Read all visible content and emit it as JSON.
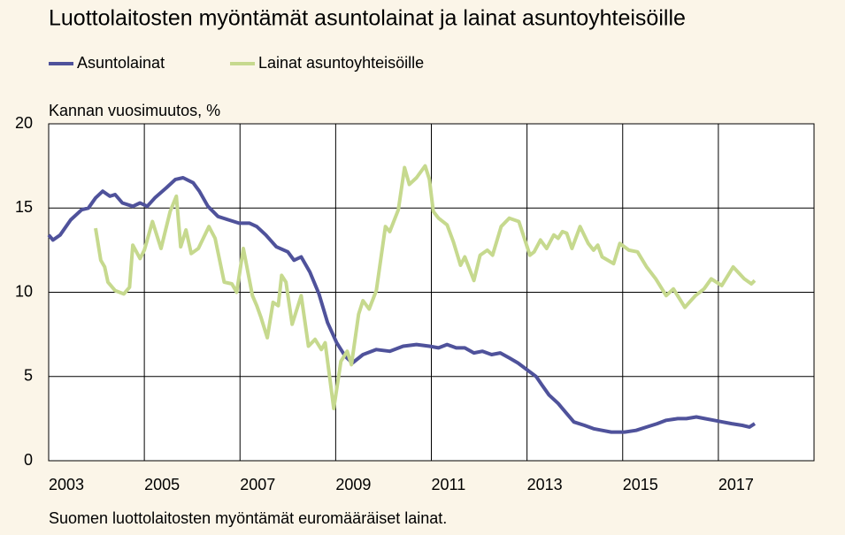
{
  "chart_data": {
    "type": "line",
    "title": "Luottolaitosten myöntämät asuntolainat ja lainat asuntoyhteisöille",
    "y_label": "Kannan vuosimuutos, %",
    "note": "Suomen luottolaitosten myöntämät euromääräiset lainat.",
    "xlim": [
      2003,
      2019
    ],
    "xticks": [
      2003,
      2005,
      2007,
      2009,
      2011,
      2013,
      2015,
      2017
    ],
    "ylim": [
      0,
      20
    ],
    "yticks": [
      0,
      5,
      10,
      15,
      20
    ],
    "grid": true,
    "series": [
      {
        "name": "Asuntolainat",
        "color": "#4f529b",
        "x": [
          2003.0,
          2003.09,
          2003.24,
          2003.46,
          2003.69,
          2003.83,
          2003.98,
          2004.13,
          2004.28,
          2004.39,
          2004.54,
          2004.76,
          2004.91,
          2005.06,
          2005.22,
          2005.46,
          2005.65,
          2005.81,
          2006.02,
          2006.15,
          2006.33,
          2006.54,
          2006.76,
          2006.98,
          2007.2,
          2007.35,
          2007.54,
          2007.76,
          2008.0,
          2008.13,
          2008.28,
          2008.46,
          2008.65,
          2008.83,
          2009.02,
          2009.2,
          2009.35,
          2009.57,
          2009.85,
          2010.13,
          2010.41,
          2010.69,
          2010.96,
          2011.15,
          2011.33,
          2011.52,
          2011.7,
          2011.89,
          2012.07,
          2012.26,
          2012.44,
          2012.63,
          2012.81,
          2013.0,
          2013.19,
          2013.31,
          2013.46,
          2013.65,
          2013.8,
          2013.98,
          2014.2,
          2014.39,
          2014.57,
          2014.76,
          2015.04,
          2015.28,
          2015.5,
          2015.72,
          2015.91,
          2016.15,
          2016.33,
          2016.54,
          2016.72,
          2016.91,
          2017.09,
          2017.28,
          2017.5,
          2017.65,
          2017.76
        ],
        "values": [
          13.4,
          13.1,
          13.4,
          14.3,
          14.9,
          15.0,
          15.6,
          16.0,
          15.7,
          15.8,
          15.3,
          15.1,
          15.3,
          15.1,
          15.6,
          16.2,
          16.7,
          16.8,
          16.5,
          16.0,
          15.1,
          14.5,
          14.3,
          14.1,
          14.1,
          13.9,
          13.4,
          12.7,
          12.4,
          11.9,
          12.1,
          11.2,
          9.9,
          8.2,
          7.0,
          6.2,
          5.8,
          6.3,
          6.6,
          6.5,
          6.8,
          6.9,
          6.8,
          6.7,
          6.9,
          6.7,
          6.7,
          6.4,
          6.5,
          6.3,
          6.4,
          6.1,
          5.8,
          5.4,
          5.0,
          4.5,
          3.9,
          3.4,
          2.9,
          2.3,
          2.1,
          1.9,
          1.8,
          1.7,
          1.7,
          1.8,
          2.0,
          2.2,
          2.4,
          2.5,
          2.5,
          2.6,
          2.5,
          2.4,
          2.3,
          2.2,
          2.1,
          2.0,
          2.2
        ]
      },
      {
        "name": "Lainat asuntoyhteisöille",
        "color": "#c6d98e",
        "x": [
          2003.98,
          2004.09,
          2004.17,
          2004.24,
          2004.39,
          2004.57,
          2004.69,
          2004.76,
          2004.91,
          2005.0,
          2005.17,
          2005.35,
          2005.54,
          2005.67,
          2005.76,
          2005.87,
          2005.98,
          2006.13,
          2006.35,
          2006.48,
          2006.67,
          2006.83,
          2006.93,
          2007.07,
          2007.26,
          2007.35,
          2007.44,
          2007.57,
          2007.69,
          2007.8,
          2007.87,
          2007.96,
          2008.09,
          2008.28,
          2008.43,
          2008.57,
          2008.7,
          2008.78,
          2008.96,
          2009.11,
          2009.24,
          2009.33,
          2009.48,
          2009.57,
          2009.7,
          2009.85,
          2010.04,
          2010.13,
          2010.31,
          2010.44,
          2010.54,
          2010.69,
          2010.87,
          2010.96,
          2011.04,
          2011.15,
          2011.33,
          2011.46,
          2011.61,
          2011.7,
          2011.89,
          2012.02,
          2012.17,
          2012.28,
          2012.46,
          2012.63,
          2012.83,
          2013.06,
          2013.15,
          2013.28,
          2013.41,
          2013.56,
          2013.65,
          2013.74,
          2013.83,
          2013.94,
          2014.11,
          2014.28,
          2014.39,
          2014.48,
          2014.57,
          2014.81,
          2014.94,
          2015.13,
          2015.31,
          2015.5,
          2015.69,
          2015.91,
          2016.06,
          2016.3,
          2016.52,
          2016.7,
          2016.85,
          2017.07,
          2017.31,
          2017.54,
          2017.69,
          2017.76
        ],
        "values": [
          13.8,
          11.9,
          11.5,
          10.6,
          10.1,
          9.9,
          10.3,
          12.8,
          12.0,
          12.5,
          14.2,
          12.6,
          14.8,
          15.7,
          12.7,
          13.7,
          12.3,
          12.6,
          13.9,
          13.2,
          10.6,
          10.5,
          10.0,
          12.6,
          9.8,
          9.2,
          8.5,
          7.3,
          9.4,
          9.2,
          11.0,
          10.6,
          8.1,
          9.8,
          6.8,
          7.2,
          6.6,
          7.0,
          3.1,
          5.9,
          6.5,
          5.7,
          8.7,
          9.5,
          9.0,
          10.1,
          13.9,
          13.6,
          14.9,
          17.4,
          16.4,
          16.8,
          17.5,
          16.7,
          14.8,
          14.4,
          14.0,
          13.0,
          11.6,
          12.1,
          10.7,
          12.2,
          12.5,
          12.2,
          13.9,
          14.4,
          14.2,
          12.2,
          12.4,
          13.1,
          12.6,
          13.4,
          13.2,
          13.6,
          13.5,
          12.6,
          13.9,
          12.9,
          12.5,
          12.8,
          12.1,
          11.7,
          12.9,
          12.5,
          12.4,
          11.5,
          10.8,
          9.8,
          10.2,
          9.1,
          9.8,
          10.2,
          10.8,
          10.4,
          11.5,
          10.8,
          10.5,
          10.7
        ]
      }
    ]
  }
}
